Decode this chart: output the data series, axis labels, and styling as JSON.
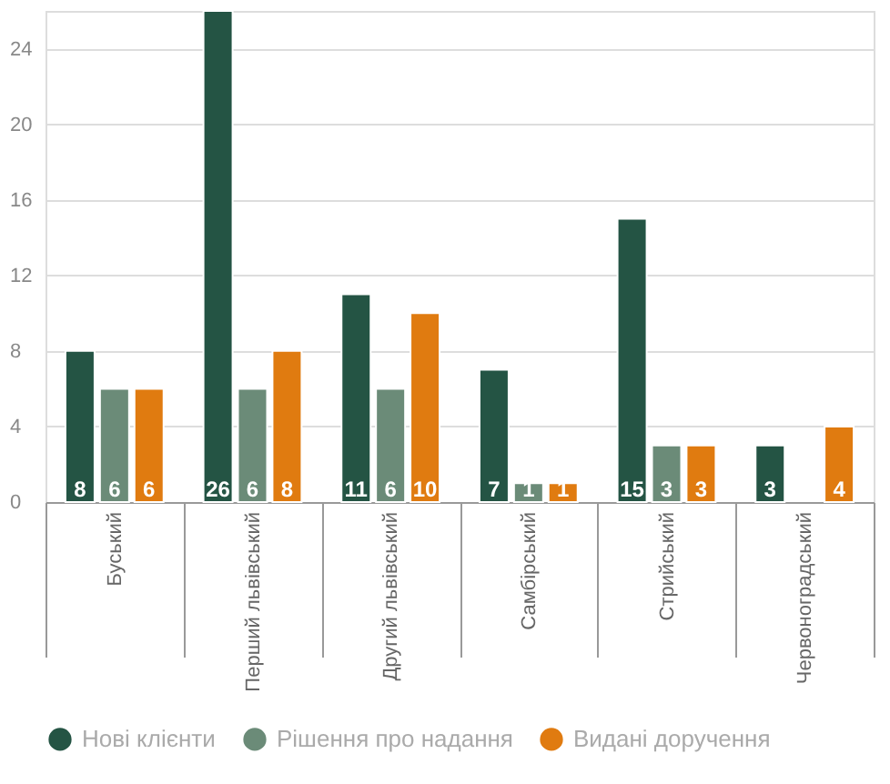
{
  "chart_data": {
    "type": "bar",
    "categories": [
      "Буський",
      "Перший львівський",
      "Другий львівський",
      "Самбірський",
      "Стрийський",
      "Червоноградський"
    ],
    "series": [
      {
        "name": "Нові клієнти",
        "color": "#245444",
        "values": [
          8,
          26,
          11,
          7,
          15,
          3
        ]
      },
      {
        "name": "Рішення про надання",
        "color": "#6b8b78",
        "values": [
          6,
          6,
          6,
          1,
          3,
          null
        ]
      },
      {
        "name": "Видані доручення",
        "color": "#e07b10",
        "values": [
          6,
          8,
          10,
          1,
          3,
          4
        ]
      }
    ],
    "ylim": [
      0,
      26
    ],
    "yticks": [
      0,
      4,
      8,
      12,
      16,
      20,
      24
    ],
    "grid": "y",
    "legend": "bottom",
    "data_labels": true
  }
}
